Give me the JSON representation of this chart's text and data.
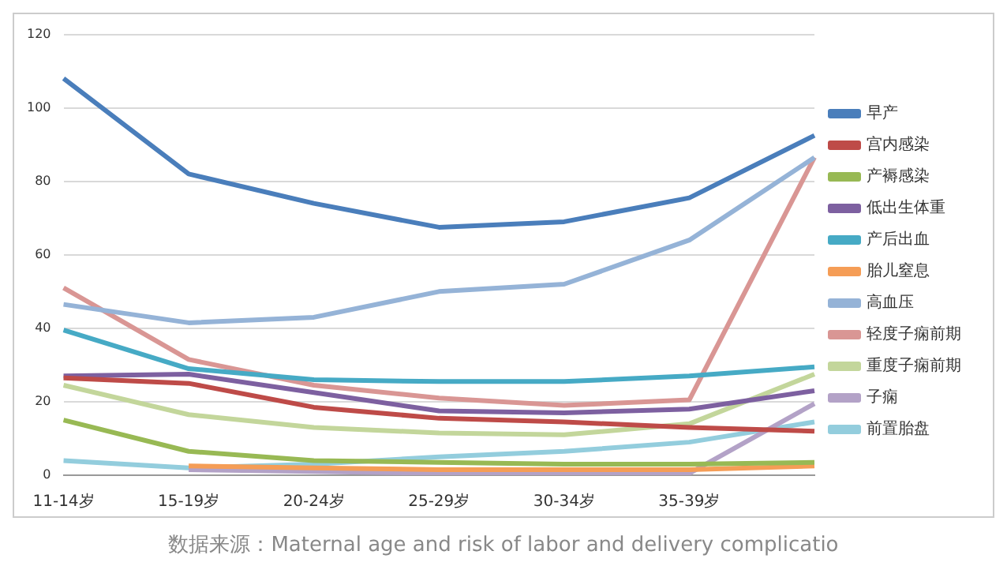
{
  "chart_data": {
    "type": "line",
    "categories": [
      "11-14岁",
      "15-19岁",
      "20-24岁",
      "25-29岁",
      "30-34岁",
      "35-39岁",
      null
    ],
    "series": [
      {
        "name": "早产",
        "color": "#4a7ebb",
        "values": [
          108,
          82,
          74,
          67.5,
          69,
          75.5,
          92.5
        ]
      },
      {
        "name": "宫内感染",
        "color": "#be4b48",
        "values": [
          26.5,
          25,
          18.5,
          15.5,
          14.5,
          13,
          12
        ]
      },
      {
        "name": "产褥感染",
        "color": "#98b954",
        "values": [
          15,
          6.5,
          4,
          3.5,
          3,
          3,
          3.5
        ]
      },
      {
        "name": "低出生体重",
        "color": "#7d60a0",
        "values": [
          27,
          27.5,
          22.5,
          17.5,
          17,
          18,
          23
        ]
      },
      {
        "name": "产后出血",
        "color": "#46aac5",
        "values": [
          39.5,
          29,
          26,
          25.5,
          25.5,
          27,
          29.5
        ]
      },
      {
        "name": "胎儿窒息",
        "color": "#f59d56",
        "values": [
          null,
          2.5,
          2,
          1.5,
          1.5,
          1.5,
          2.5
        ]
      },
      {
        "name": "高血压",
        "color": "#95b3d7",
        "values": [
          46.5,
          41.5,
          43,
          50,
          52,
          64,
          86.5
        ]
      },
      {
        "name": "轻度子痫前期",
        "color": "#d99694",
        "values": [
          51,
          31.5,
          24.5,
          21,
          19,
          20.5,
          86.5
        ]
      },
      {
        "name": "重度子痫前期",
        "color": "#c3d69b",
        "values": [
          24.5,
          16.5,
          13,
          11.5,
          11,
          14,
          27.5
        ]
      },
      {
        "name": "子痫",
        "color": "#b3a2c7",
        "values": [
          null,
          1.5,
          1,
          0.5,
          0.5,
          0.5,
          19.5
        ]
      },
      {
        "name": "前置胎盘",
        "color": "#93cddd",
        "values": [
          4,
          2,
          3,
          5,
          6.5,
          9,
          14.5
        ]
      }
    ],
    "ylim": [
      0,
      120
    ],
    "yticks": [
      0,
      20,
      40,
      60,
      80,
      100,
      120
    ],
    "grid": "y",
    "legend": "right",
    "marker": "none",
    "annotations": [
      "数据来源：Maternal age and risk of labor and delivery complicatio"
    ]
  }
}
